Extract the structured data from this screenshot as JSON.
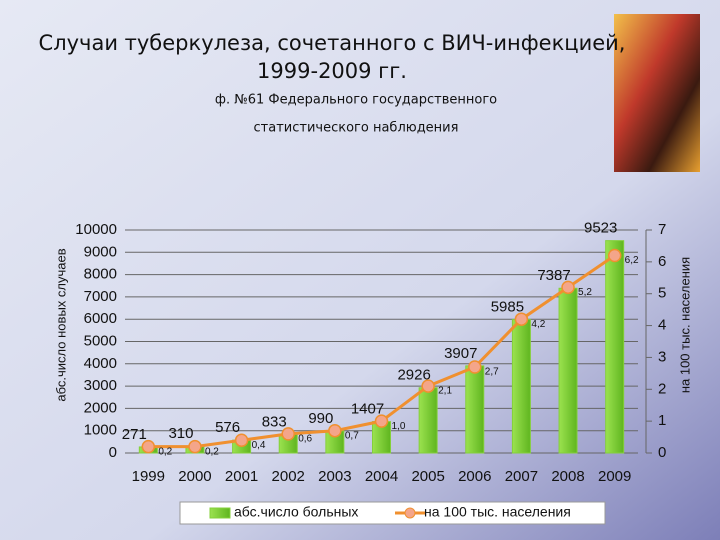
{
  "chart_data": {
    "type": "bar_line",
    "title": [
      "Случаи туберкулеза, сочетанного с ВИЧ-инфекцией,",
      "1999-2009 гг."
    ],
    "subtitle": [
      "ф. №61 Федерального государственного",
      "статистического наблюдения"
    ],
    "y_label": "абс.число новых случаев",
    "y2_label": "на 100 тыс. населения",
    "categories": [
      "1999",
      "2000",
      "2001",
      "2002",
      "2003",
      "2004",
      "2005",
      "2006",
      "2007",
      "2008",
      "2009"
    ],
    "series": [
      {
        "name": "абс.число больных",
        "type": "bar",
        "color": "#84d03a",
        "values": [
          271,
          310,
          576,
          833,
          990,
          1407,
          2926,
          3907,
          5985,
          7387,
          9523
        ]
      },
      {
        "name": "на 100 тыс. населения",
        "type": "line",
        "axis": "y2",
        "color": "#f0902f",
        "values": [
          0.2,
          0.2,
          0.4,
          0.6,
          0.7,
          1.0,
          2.1,
          2.7,
          4.2,
          5.2,
          6.2
        ],
        "value_labels": [
          "0,2",
          "0,2",
          "0,4",
          "0,6",
          "0,7",
          "1,0",
          "2,1",
          "2,7",
          "4,2",
          "5,2",
          "6,2"
        ]
      }
    ],
    "ylim": [
      0,
      10000
    ],
    "yticks": [
      0,
      1000,
      2000,
      3000,
      4000,
      5000,
      6000,
      7000,
      8000,
      9000,
      10000
    ],
    "y2lim": [
      0,
      7
    ],
    "y2ticks": [
      0,
      1,
      2,
      3,
      4,
      5,
      6,
      7
    ],
    "grid": true,
    "legend": "bottom"
  }
}
